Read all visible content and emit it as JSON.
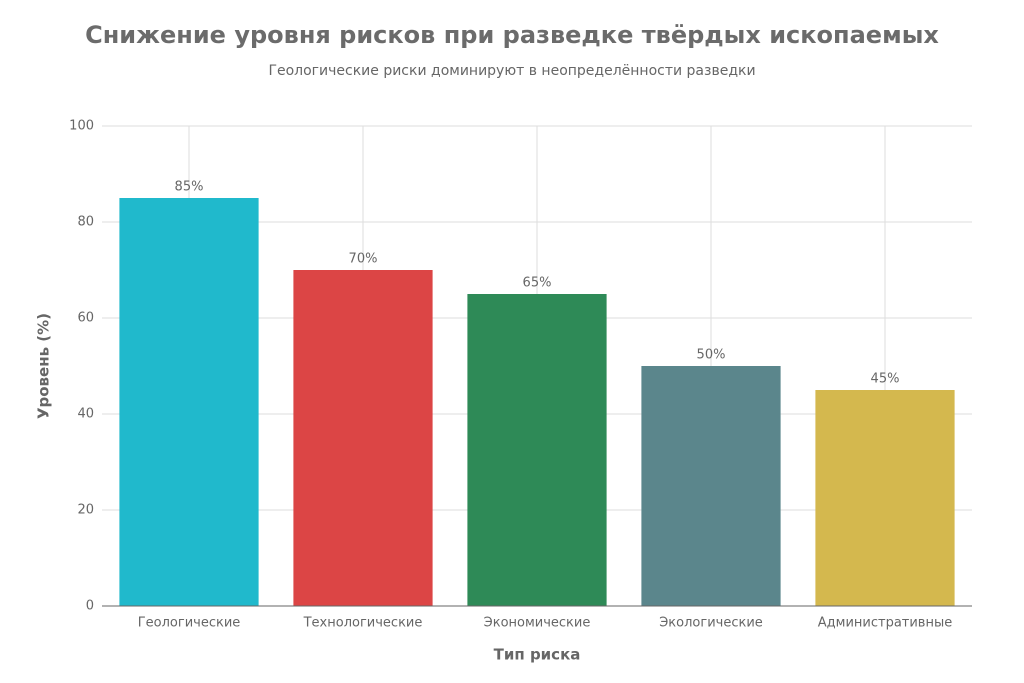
{
  "chart_data": {
    "type": "bar",
    "title": "Снижение уровня рисков при разведке твёрдых ископаемых",
    "subtitle": "Геологические риски доминируют в неопределённости разведки",
    "x_label": "Тип риска",
    "y_label": "Уровень (%)",
    "categories": [
      "Геологические",
      "Технологические",
      "Экономические",
      "Экологические",
      "Административные"
    ],
    "values": [
      85,
      70,
      65,
      50,
      45
    ],
    "value_labels": [
      "85%",
      "70%",
      "65%",
      "50%",
      "45%"
    ],
    "colors": [
      "#20b9cc",
      "#dc4545",
      "#2e8a57",
      "#5b868c",
      "#d4b84e"
    ],
    "ylim": [
      0,
      100
    ],
    "yticks": [
      0,
      20,
      40,
      60,
      80,
      100
    ],
    "grid": true
  }
}
